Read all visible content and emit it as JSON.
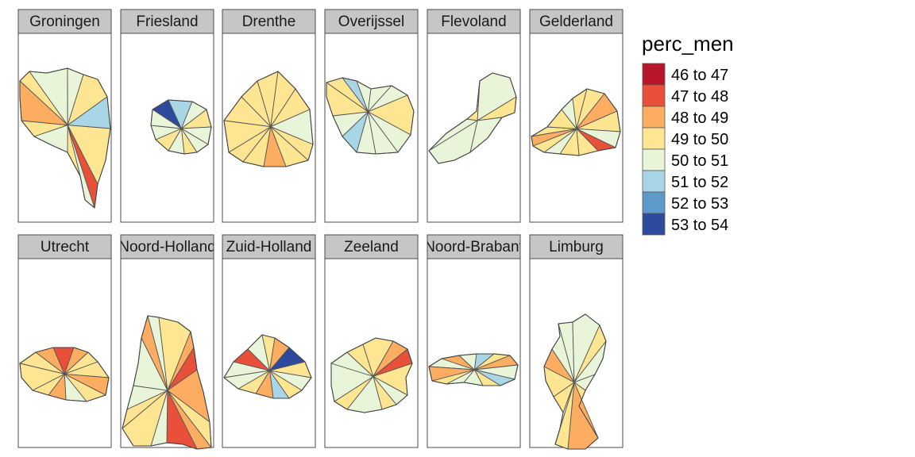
{
  "legend": {
    "title": "perc_men",
    "items": [
      {
        "label": "46 to 47",
        "color": "#b8162b"
      },
      {
        "label": "47 to 48",
        "color": "#e8503a"
      },
      {
        "label": "48 to 49",
        "color": "#fcad62"
      },
      {
        "label": "49 to 50",
        "color": "#fde591"
      },
      {
        "label": "50 to 51",
        "color": "#e9f5d8"
      },
      {
        "label": "51 to 52",
        "color": "#a8d6e6"
      },
      {
        "label": "52 to 53",
        "color": "#5d9ac9"
      },
      {
        "label": "53 to 54",
        "color": "#2d4a9c"
      }
    ]
  },
  "panels": [
    {
      "name": "Groningen",
      "fills": [
        3,
        4,
        4,
        3,
        5,
        3,
        1,
        4,
        3,
        4,
        3,
        2
      ]
    },
    {
      "name": "Friesland",
      "fills": [
        7,
        5,
        4,
        3,
        4,
        4,
        3,
        4,
        3,
        4,
        4
      ]
    },
    {
      "name": "Drenthe",
      "fills": [
        3,
        3,
        3,
        3,
        3,
        4,
        3,
        3,
        2,
        3,
        3,
        3
      ]
    },
    {
      "name": "Overijssel",
      "fills": [
        3,
        5,
        4,
        4,
        4,
        3,
        4,
        4,
        4,
        5,
        4,
        3
      ]
    },
    {
      "name": "Flevoland",
      "fills": [
        4,
        3,
        4,
        3,
        4,
        4
      ]
    },
    {
      "name": "Gelderland",
      "fills": [
        3,
        3,
        4,
        3,
        3,
        2,
        3,
        4,
        1,
        3,
        3,
        4,
        3,
        2
      ]
    },
    {
      "name": "Utrecht",
      "fills": [
        3,
        2,
        1,
        2,
        3,
        3,
        2,
        3,
        4,
        2,
        3,
        3
      ]
    },
    {
      "name": "Noord-Holland",
      "fills": [
        3,
        4,
        4,
        2,
        4,
        3,
        2,
        1,
        2,
        3,
        2,
        1,
        4,
        3
      ]
    },
    {
      "name": "Zuid-Holland",
      "fills": [
        3,
        4,
        1,
        4,
        3,
        2,
        7,
        3,
        4,
        3,
        5,
        2,
        3,
        4
      ]
    },
    {
      "name": "Zeeland",
      "fills": [
        4,
        3,
        3,
        2,
        1,
        3,
        4,
        3,
        4,
        3,
        4
      ]
    },
    {
      "name": "Noord-Brabant",
      "fills": [
        3,
        4,
        2,
        4,
        5,
        3,
        2,
        4,
        5,
        3,
        4,
        4,
        3,
        2
      ]
    },
    {
      "name": "Limburg",
      "fills": [
        4,
        4,
        3,
        4,
        4,
        3,
        3,
        2,
        3,
        4,
        3,
        3,
        2,
        4
      ]
    }
  ]
}
